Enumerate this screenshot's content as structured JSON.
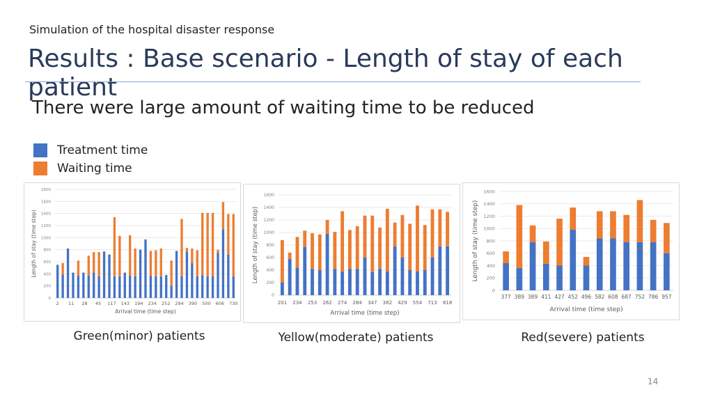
{
  "slide": {
    "subtitle": "Simulation of the hospital disaster response",
    "title": "Results : Base scenario  - Length of stay of each patient",
    "headline": "There were large amount of waiting time to be reduced",
    "page_number": "14"
  },
  "legend": {
    "treatment": {
      "label": "Treatment time",
      "color": "#4472C4"
    },
    "waiting": {
      "label": "Waiting time",
      "color": "#ED7D31"
    }
  },
  "captions": {
    "green": "Green(minor) patients",
    "yellow": "Yellow(moderate) patients",
    "red": "Red(severe) patients"
  },
  "chart_data": [
    {
      "type": "bar",
      "stacked": true,
      "title": "",
      "xlabel": "Arrival time (time step)",
      "ylabel": "Length of stay (time step)",
      "ylim": [
        0,
        1800
      ],
      "yticks": [
        0,
        200,
        400,
        600,
        800,
        1000,
        1200,
        1400,
        1600,
        1800
      ],
      "xtick_labels": [
        "2",
        "11",
        "28",
        "45",
        "117",
        "143",
        "194",
        "234",
        "252",
        "294",
        "390",
        "500",
        "606",
        "730"
      ],
      "series": [
        {
          "name": "Treatment time",
          "values": [
            550,
            390,
            820,
            420,
            370,
            420,
            370,
            420,
            360,
            770,
            720,
            360,
            360,
            420,
            370,
            360,
            800,
            970,
            370,
            360,
            360,
            380,
            200,
            780,
            360,
            770,
            580,
            360,
            380,
            360,
            360,
            750,
            1140,
            720,
            360
          ]
        },
        {
          "name": "Waiting time",
          "values": [
            0,
            190,
            0,
            0,
            250,
            0,
            330,
            340,
            400,
            0,
            0,
            980,
            670,
            0,
            670,
            460,
            0,
            0,
            410,
            430,
            460,
            0,
            420,
            0,
            950,
            60,
            240,
            430,
            1030,
            1050,
            1050,
            50,
            450,
            670,
            1030
          ]
        }
      ]
    },
    {
      "type": "bar",
      "stacked": true,
      "title": "",
      "xlabel": "Arrival time (time step)",
      "ylabel": "Length of stay (time step)",
      "ylim": [
        0,
        1600
      ],
      "yticks": [
        0,
        200,
        400,
        600,
        800,
        1000,
        1200,
        1400,
        1600
      ],
      "xtick_labels": [
        "201",
        "234",
        "253",
        "262",
        "274",
        "284",
        "347",
        "382",
        "429",
        "554",
        "713",
        "818"
      ],
      "series": [
        {
          "name": "Treatment time",
          "values": [
            200,
            580,
            440,
            770,
            420,
            400,
            980,
            420,
            380,
            420,
            420,
            600,
            370,
            420,
            380,
            780,
            600,
            400,
            380,
            400,
            600,
            780,
            780
          ]
        },
        {
          "name": "Waiting time",
          "values": [
            680,
            100,
            490,
            260,
            570,
            570,
            220,
            590,
            960,
            620,
            680,
            670,
            900,
            660,
            1000,
            380,
            680,
            740,
            1050,
            720,
            770,
            590,
            550
          ]
        }
      ]
    },
    {
      "type": "bar",
      "stacked": true,
      "title": "",
      "xlabel": "Arrival time (time step)",
      "ylabel": "Length of stay (time step)",
      "ylim": [
        0,
        1600
      ],
      "yticks": [
        0,
        200,
        400,
        600,
        800,
        1000,
        1200,
        1400,
        1600
      ],
      "categories": [
        "377",
        "389",
        "389",
        "411",
        "427",
        "452",
        "496",
        "582",
        "608",
        "687",
        "752",
        "786",
        "957"
      ],
      "series": [
        {
          "name": "Treatment time",
          "values": [
            440,
            360,
            780,
            430,
            400,
            980,
            400,
            840,
            840,
            780,
            780,
            780,
            600
          ]
        },
        {
          "name": "Waiting time",
          "values": [
            190,
            1020,
            270,
            360,
            760,
            360,
            140,
            440,
            440,
            440,
            680,
            360,
            490
          ]
        }
      ]
    }
  ]
}
